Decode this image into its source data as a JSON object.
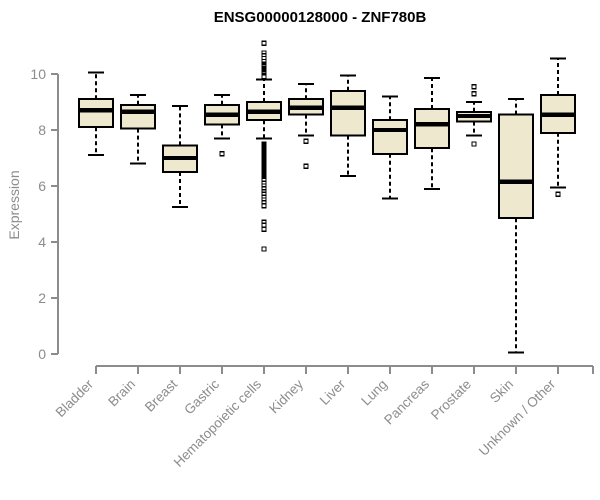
{
  "title": "ENSG00000128000 - ZNF780B",
  "colors": {
    "box_fill": "#EDE8CE",
    "box_border": "#000000",
    "median": "#000000",
    "whisker": "#000000",
    "axis": "#8C8C8C",
    "tick_label": "#8C8C8C",
    "title": "#000000",
    "outlier_fill": "#FFFFFF"
  },
  "chart_data": {
    "type": "boxplot",
    "title": "ENSG00000128000 - ZNF780B",
    "xlabel": "",
    "ylabel": "Expression",
    "ylim": [
      0,
      10
    ],
    "yticks": [
      10,
      8,
      6,
      4,
      2,
      0
    ],
    "grid": false,
    "legend": false,
    "categories": [
      "Bladder",
      "Brain",
      "Breast",
      "Gastric",
      "Hematopoietic cells",
      "Kidney",
      "Liver",
      "Lung",
      "Pancreas",
      "Prostate",
      "Skin",
      "Unknown / Other"
    ],
    "series": [
      {
        "name": "Bladder",
        "low": 7.1,
        "q1": 8.1,
        "median": 8.7,
        "q3": 9.1,
        "high": 10.05,
        "outliers": []
      },
      {
        "name": "Brain",
        "low": 6.8,
        "q1": 8.05,
        "median": 8.65,
        "q3": 8.9,
        "high": 9.25,
        "outliers": []
      },
      {
        "name": "Breast",
        "low": 5.25,
        "q1": 6.5,
        "median": 7.0,
        "q3": 7.45,
        "high": 8.85,
        "outliers": []
      },
      {
        "name": "Gastric",
        "low": 7.7,
        "q1": 8.2,
        "median": 8.55,
        "q3": 8.9,
        "high": 9.25,
        "outliers": [
          7.15
        ]
      },
      {
        "name": "Hematopoietic cells",
        "low": 7.7,
        "q1": 8.35,
        "median": 8.65,
        "q3": 9.0,
        "high": 9.8,
        "outliers": [
          11.1,
          10.75,
          10.65,
          10.55,
          10.45,
          10.35,
          10.3,
          10.25,
          10.2,
          10.15,
          10.1,
          10.05,
          10.0,
          9.95,
          9.9,
          7.5,
          7.45,
          7.4,
          7.35,
          7.3,
          7.25,
          7.2,
          7.15,
          7.1,
          7.05,
          7.0,
          6.95,
          6.9,
          6.85,
          6.8,
          6.75,
          6.7,
          6.65,
          6.6,
          6.55,
          6.5,
          6.45,
          6.4,
          6.35,
          6.3,
          6.25,
          6.2,
          6.1,
          6.0,
          5.9,
          5.8,
          5.7,
          5.6,
          5.5,
          5.4,
          5.3,
          4.7,
          4.6,
          4.45,
          3.75
        ]
      },
      {
        "name": "Kidney",
        "low": 7.8,
        "q1": 8.55,
        "median": 8.8,
        "q3": 9.1,
        "high": 9.65,
        "outliers": [
          7.6,
          6.7
        ]
      },
      {
        "name": "Liver",
        "low": 6.35,
        "q1": 7.8,
        "median": 8.8,
        "q3": 9.4,
        "high": 9.95,
        "outliers": []
      },
      {
        "name": "Lung",
        "low": 5.55,
        "q1": 7.15,
        "median": 8.0,
        "q3": 8.35,
        "high": 9.2,
        "outliers": []
      },
      {
        "name": "Pancreas",
        "low": 5.9,
        "q1": 7.35,
        "median": 8.2,
        "q3": 8.75,
        "high": 9.85,
        "outliers": []
      },
      {
        "name": "Prostate",
        "low": 7.8,
        "q1": 8.3,
        "median": 8.5,
        "q3": 8.65,
        "high": 9.0,
        "outliers": [
          9.55,
          9.3,
          7.5
        ]
      },
      {
        "name": "Skin",
        "low": 0.05,
        "q1": 4.85,
        "median": 6.15,
        "q3": 8.55,
        "high": 9.1,
        "outliers": []
      },
      {
        "name": "Unknown / Other",
        "low": 5.95,
        "q1": 7.9,
        "median": 8.55,
        "q3": 9.25,
        "high": 10.55,
        "outliers": [
          5.7
        ]
      }
    ]
  }
}
